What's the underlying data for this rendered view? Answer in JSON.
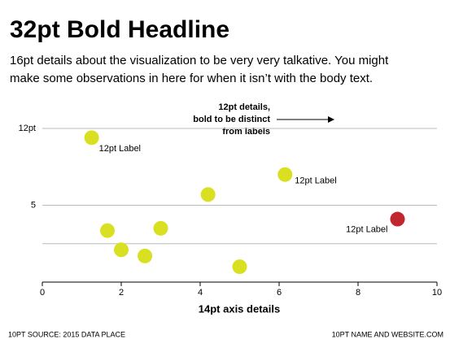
{
  "chart_data": {
    "type": "scatter",
    "title": "32pt Bold Headline",
    "subtitle": [
      "16pt details about the visualization to be very very talkative. You might",
      "make some observations in here for when it isn’t with the body text."
    ],
    "annotation": [
      "12pt details,",
      "bold to be distinct",
      "from labels"
    ],
    "x_label": "14pt axis details",
    "source": "10PT SOURCE: 2015 DATA PLACE",
    "credit": "10PT NAME AND WEBSITE.COM",
    "x": [
      1.25,
      6.15,
      4.2,
      9,
      1.65,
      3.0,
      2.0,
      2.6,
      5.0
    ],
    "y": [
      9.4,
      7.0,
      5.7,
      4.1,
      3.35,
      3.5,
      2.1,
      1.7,
      1.0
    ],
    "colors": [
      "#d9e021",
      "#d9e021",
      "#d9e021",
      "#c1272d",
      "#d9e021",
      "#d9e021",
      "#d9e021",
      "#d9e021",
      "#d9e021"
    ],
    "point_labels": [
      "12pt Label",
      "12pt Label",
      null,
      "12pt Label",
      null,
      null,
      null,
      null,
      null
    ],
    "xlim": [
      0,
      10
    ],
    "xticks": [
      0,
      2,
      4,
      6,
      8,
      10
    ],
    "ylim": [
      0,
      10
    ],
    "yticks": [
      {
        "value": 10,
        "label": "12pt"
      },
      5
    ],
    "minor_yticks": [
      2.5
    ],
    "grid": true
  }
}
